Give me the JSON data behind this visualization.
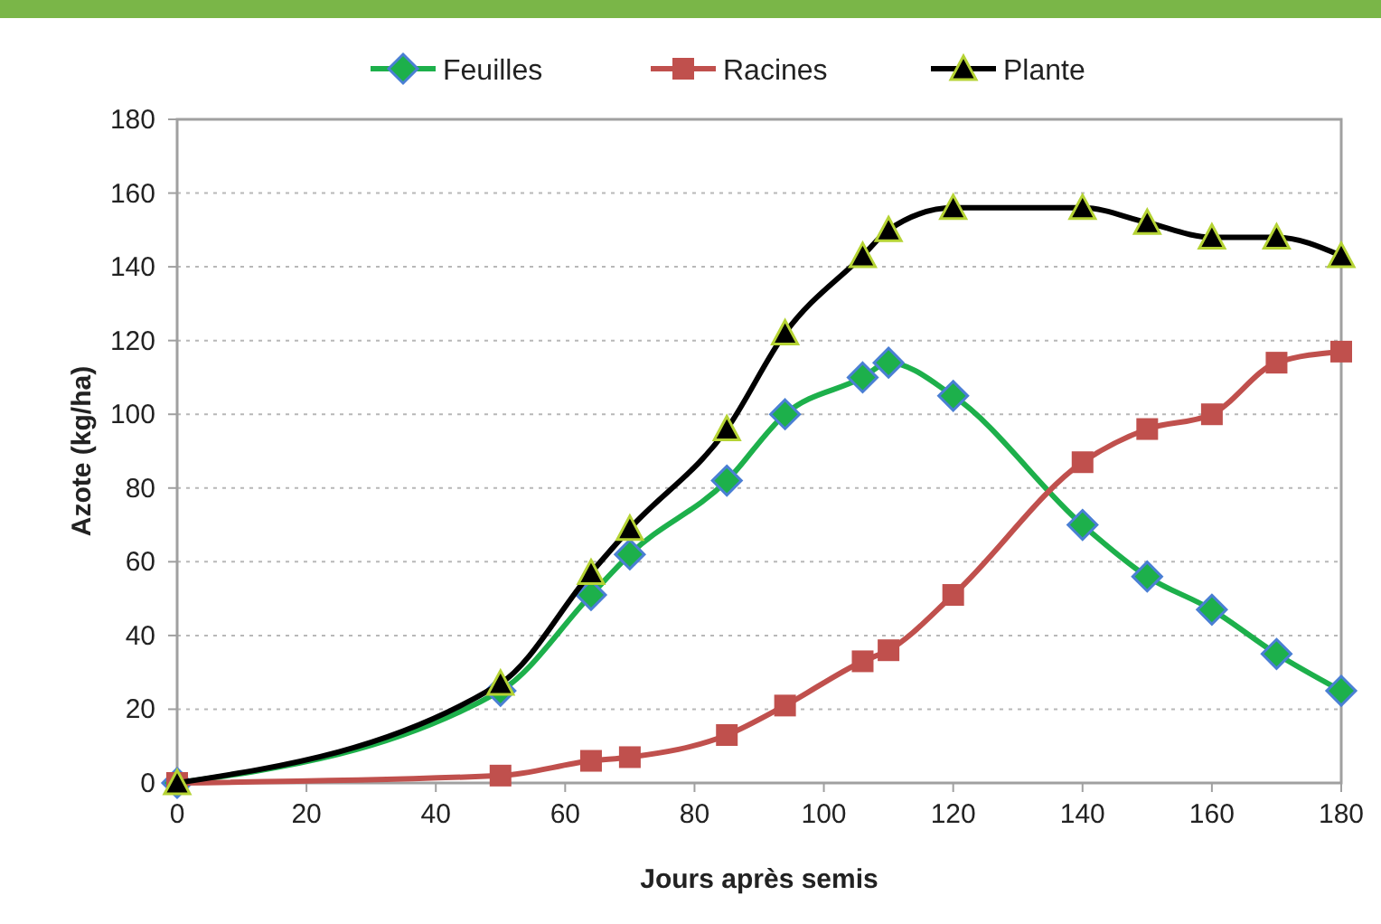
{
  "chart_data": {
    "type": "line",
    "xlabel": "Jours après semis",
    "ylabel": "Azote (kg/ha)",
    "xlim": [
      0,
      180
    ],
    "xticks": [
      0,
      20,
      40,
      60,
      80,
      100,
      120,
      140,
      160,
      180
    ],
    "ylim": [
      0,
      180
    ],
    "yticks": [
      0,
      20,
      40,
      60,
      80,
      100,
      120,
      140,
      160,
      180
    ],
    "grid": "y",
    "legend": "top",
    "line_style": "solid",
    "x": [
      0,
      50,
      64,
      70,
      85,
      94,
      106,
      110,
      120,
      140,
      150,
      160,
      170,
      180
    ],
    "series": [
      {
        "name": "Feuilles",
        "color": "#1db04b",
        "marker": "diamond",
        "values": [
          0,
          25,
          51,
          62,
          82,
          100,
          110,
          114,
          105,
          70,
          56,
          47,
          35,
          25
        ]
      },
      {
        "name": "Racines",
        "color": "#c0504d",
        "marker": "square",
        "values": [
          0,
          2,
          6,
          7,
          13,
          21,
          33,
          36,
          51,
          87,
          96,
          100,
          114,
          117
        ]
      },
      {
        "name": "Plante",
        "color": "#000000",
        "marker": "triangle",
        "values": [
          0,
          27,
          57,
          69,
          96,
          122,
          143,
          150,
          156,
          156,
          152,
          148,
          148,
          143
        ]
      }
    ]
  }
}
